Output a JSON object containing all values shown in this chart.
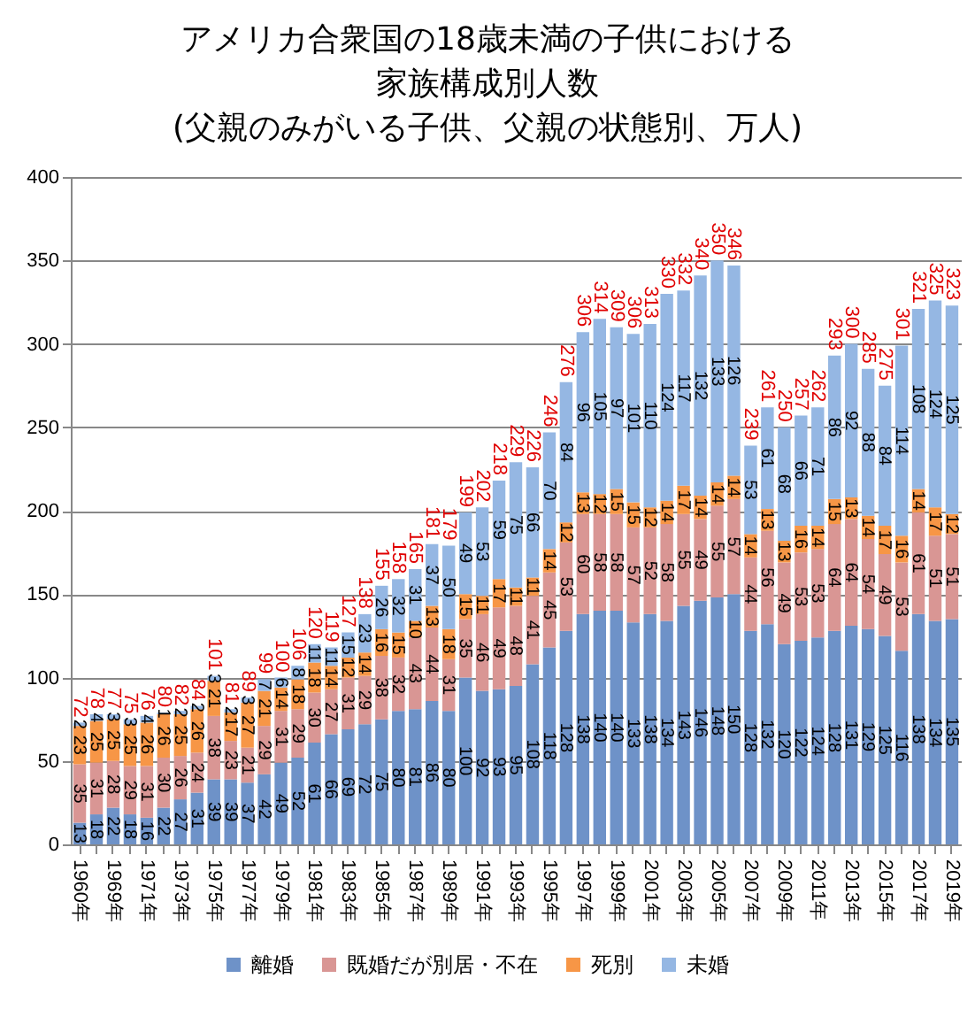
{
  "chart_data": {
    "type": "bar",
    "stacked": true,
    "title": "アメリカ合衆国の18歳未満の子供における家族構成別人数",
    "subtitle": "(父親のみがいる子供、父親の状態別、万人)",
    "categories": [
      "1960年",
      null,
      "1969年",
      null,
      "1971年",
      null,
      "1973年",
      null,
      "1975年",
      null,
      "1977年",
      null,
      "1979年",
      null,
      "1981年",
      null,
      "1983年",
      null,
      "1985年",
      null,
      "1987年",
      null,
      "1989年",
      null,
      "1991年",
      null,
      "1993年",
      null,
      "1995年",
      null,
      "1997年",
      null,
      "1999年",
      null,
      "2001年",
      null,
      "2003年",
      null,
      "2005年",
      null,
      "2007年",
      null,
      "2009年",
      null,
      "2011年",
      null,
      "2013年",
      null,
      "2015年",
      null,
      "2017年",
      null,
      "2019年"
    ],
    "series": [
      {
        "name": "離婚",
        "color": "#6e92c8",
        "values": [
          13,
          18,
          22,
          18,
          16,
          22,
          27,
          31,
          39,
          39,
          37,
          42,
          49,
          52,
          61,
          66,
          69,
          72,
          75,
          80,
          81,
          86,
          80,
          100,
          92,
          93,
          95,
          108,
          118,
          128,
          138,
          140,
          140,
          133,
          138,
          134,
          143,
          146,
          148,
          150,
          128,
          132,
          120,
          122,
          124,
          128,
          131,
          129,
          125,
          116,
          138,
          134,
          135
        ]
      },
      {
        "name": "既婚だが別居・不在",
        "color": "#d99694",
        "values": [
          35,
          31,
          28,
          29,
          31,
          30,
          26,
          24,
          38,
          23,
          21,
          29,
          31,
          29,
          30,
          27,
          31,
          29,
          38,
          32,
          43,
          44,
          31,
          35,
          46,
          49,
          48,
          41,
          45,
          53,
          60,
          58,
          58,
          57,
          52,
          58,
          55,
          49,
          55,
          57,
          44,
          56,
          49,
          53,
          53,
          64,
          64,
          54,
          49,
          53,
          61,
          51,
          51
        ]
      },
      {
        "name": "死別",
        "color": "#f79646",
        "values": [
          23,
          25,
          25,
          25,
          26,
          26,
          25,
          26,
          21,
          17,
          27,
          21,
          14,
          18,
          18,
          14,
          12,
          14,
          16,
          15,
          10,
          13,
          18,
          15,
          11,
          17,
          11,
          11,
          14,
          12,
          13,
          12,
          15,
          15,
          12,
          14,
          17,
          14,
          14,
          14,
          14,
          13,
          13,
          16,
          14,
          15,
          13,
          14,
          17,
          16,
          14,
          17,
          12
        ]
      },
      {
        "name": "未婚",
        "color": "#95b7e3",
        "values": [
          2,
          4,
          3,
          3,
          4,
          1,
          2,
          2,
          3,
          2,
          3,
          7,
          6,
          8,
          11,
          11,
          15,
          23,
          26,
          32,
          31,
          37,
          50,
          49,
          53,
          59,
          75,
          66,
          70,
          84,
          96,
          105,
          97,
          101,
          110,
          124,
          117,
          132,
          133,
          126,
          53,
          61,
          68,
          66,
          71,
          86,
          92,
          88,
          84,
          114,
          108,
          124,
          125
        ]
      }
    ],
    "totals": [
      "72",
      "78",
      "77",
      "75",
      "76",
      "80",
      "82",
      "84",
      "101",
      "81",
      "89",
      "99",
      "100",
      "106",
      "120",
      "119",
      "127",
      "138",
      "155",
      "158",
      "165",
      "181",
      "179",
      "199",
      "202",
      "218",
      "229",
      "226",
      "246",
      "276",
      "306",
      "314",
      "309",
      "306",
      "313",
      "330",
      "332",
      "340",
      "350",
      "346",
      "239",
      "261",
      "250",
      "257",
      "262",
      "293",
      "300",
      "285",
      "275",
      "301",
      "321",
      "325",
      "323"
    ],
    "ylim": [
      0,
      400
    ],
    "yticks": [
      0,
      50,
      100,
      150,
      200,
      250,
      300,
      350,
      400
    ],
    "grid": "y",
    "legend": "bottom",
    "data_labels": true
  }
}
